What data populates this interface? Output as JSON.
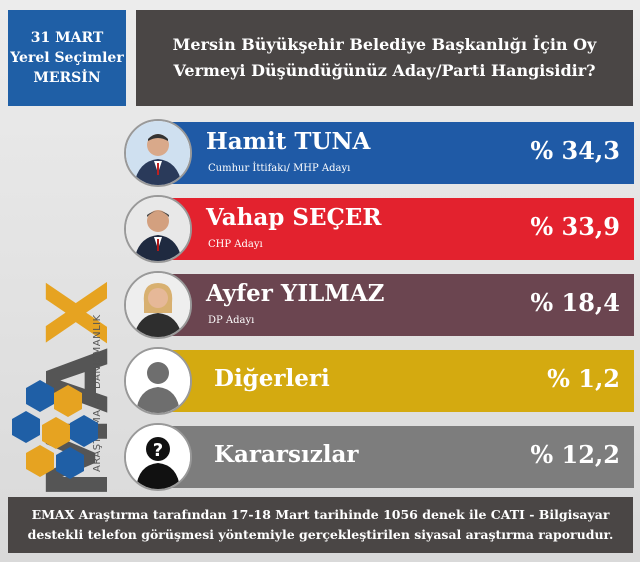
{
  "header": {
    "date_lines": [
      "31 MART",
      "Yerel Seçimler",
      "MERSİN"
    ],
    "question_lines": [
      "Mersin Büyükşehir Belediye Başkanlığı İçin Oy",
      "Vermeyi Düşündüğünüz Aday/Parti Hangisidir?"
    ]
  },
  "brand": {
    "name_main": "EMA",
    "name_x": "X",
    "tagline": "ARAŞTIRMA ve DANIŞMANLIK"
  },
  "colors": {
    "tuna": "#1f5aa6",
    "secer": "#e3222e",
    "yilmaz": "#6b4550",
    "digerleri": "#d4aa10",
    "kararsizlar": "#7d7d7d"
  },
  "chart_data": {
    "type": "bar",
    "title": "Mersin Büyükşehir Belediye Başkanlığı İçin Oy Vermeyi Düşündüğünüz Aday/Parti Hangisidir?",
    "categories": [
      "Hamit TUNA",
      "Vahap SEÇER",
      "Ayfer YILMAZ",
      "Diğerleri",
      "Kararsızlar"
    ],
    "subtitles": [
      "Cumhur İttifakı/ MHP Adayı",
      "CHP Adayı",
      "DP Adayı",
      "",
      ""
    ],
    "values": [
      34.3,
      33.9,
      18.4,
      1.2,
      12.2
    ],
    "value_labels": [
      "% 34,3",
      "% 33,9",
      "% 18,4",
      "% 1,2",
      "% 12,2"
    ]
  },
  "footer": {
    "lines": [
      "EMAX Araştırma tarafından 17-18 Mart tarihinde 1056 denek ile CATI - Bilgisayar",
      "destekli telefon görüşmesi yöntemiyle gerçekleştirilen siyasal araştırma raporudur."
    ]
  }
}
